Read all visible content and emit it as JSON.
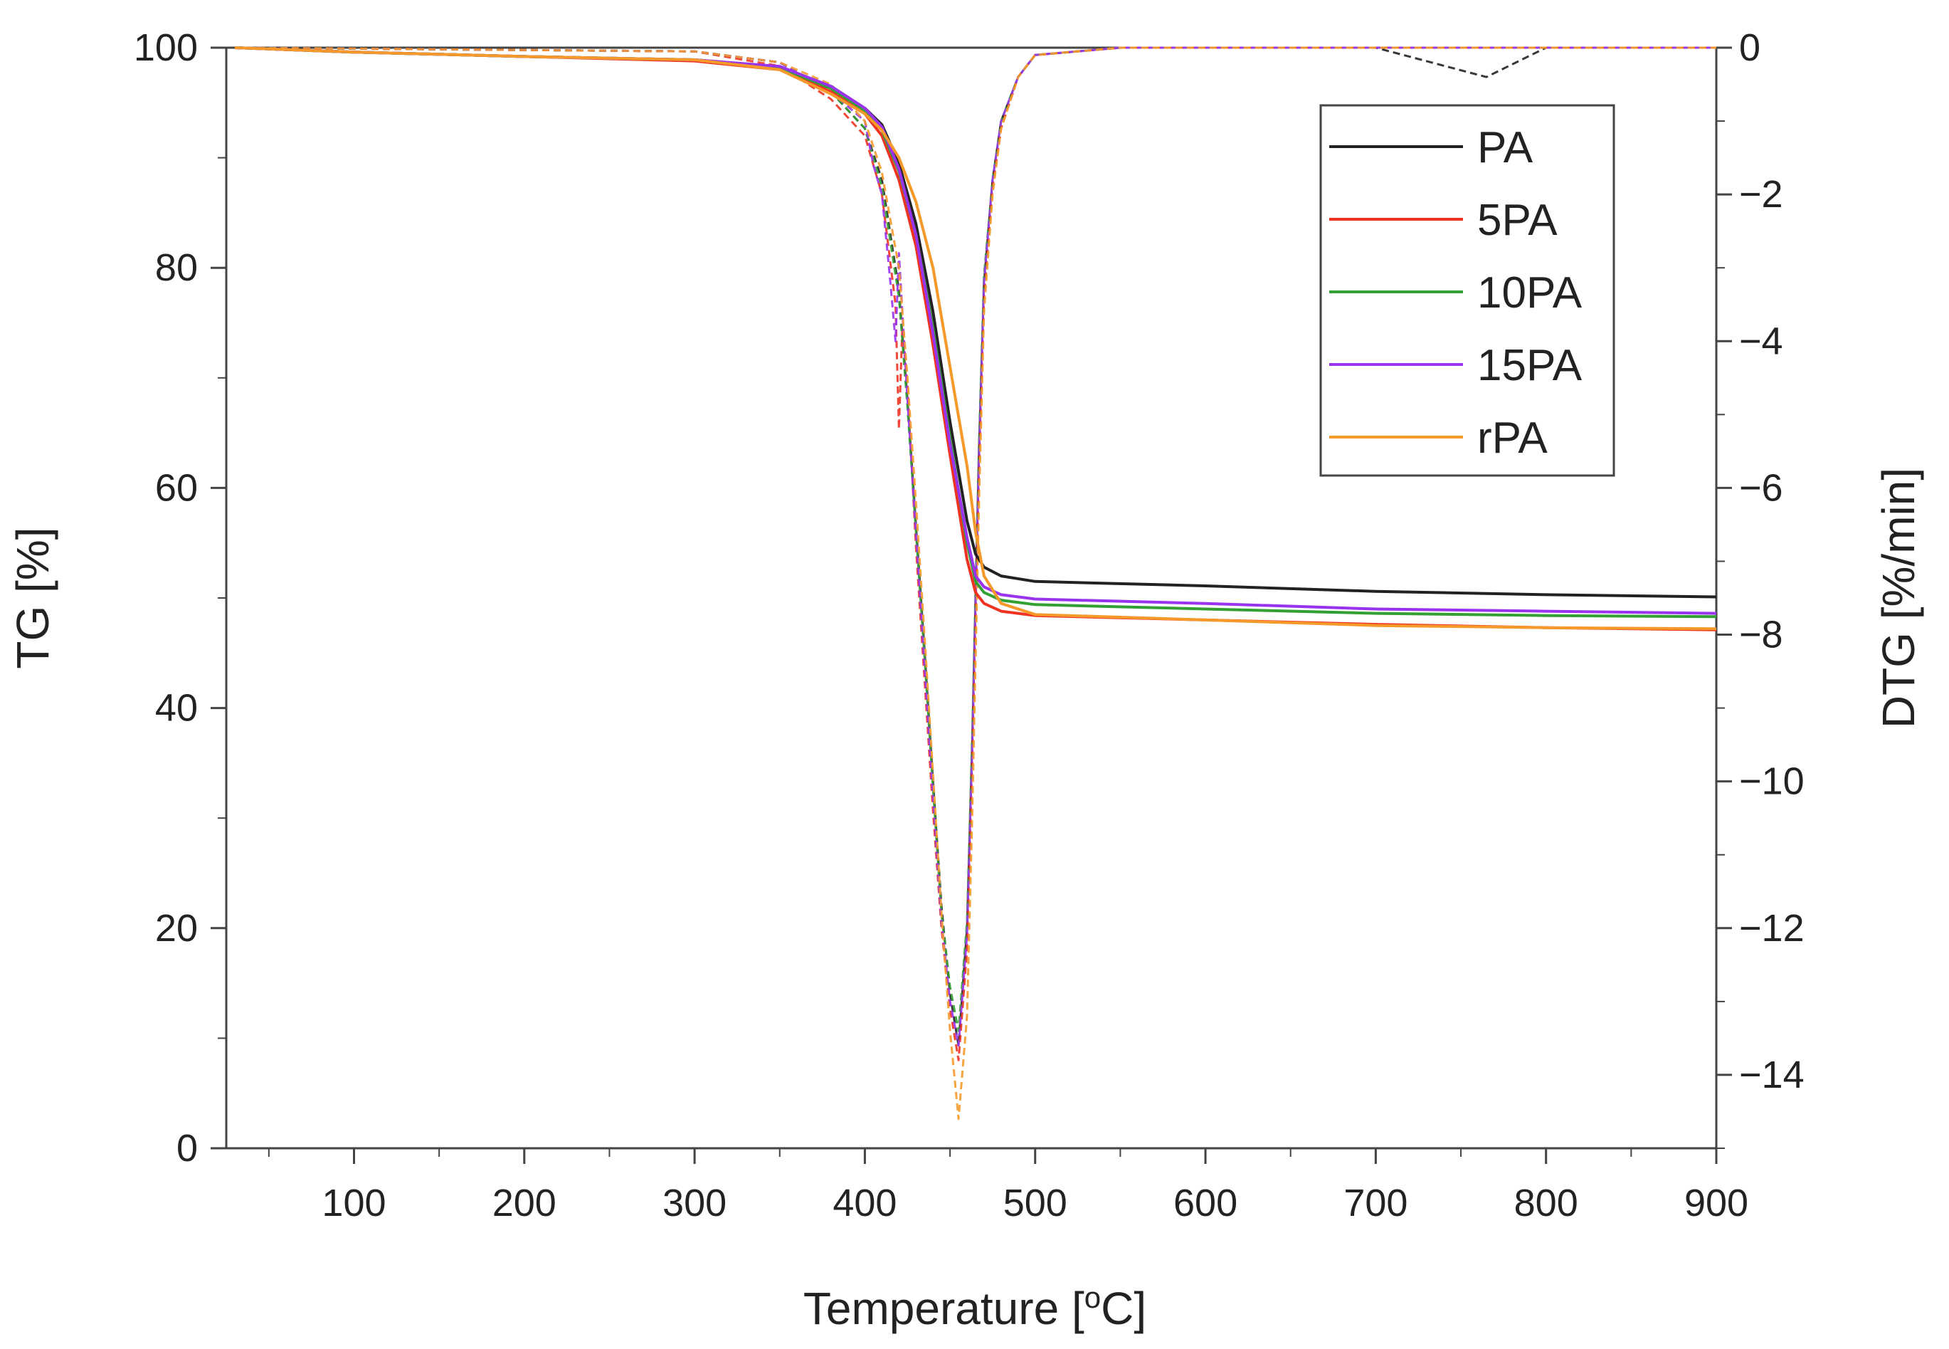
{
  "chart_data": {
    "type": "line",
    "title": "",
    "xlabel": "Temperature [",
    "xlabel_unit_sup": "o",
    "xlabel_unit_tail": "C]",
    "ylabel": "TG [%]",
    "y2label": "DTG [%/min]",
    "xlim": [
      25,
      900
    ],
    "ylim": [
      0,
      100
    ],
    "y2lim": [
      -15,
      0
    ],
    "x_ticks": [
      100,
      200,
      300,
      400,
      500,
      600,
      700,
      800,
      900
    ],
    "y_ticks": [
      0,
      20,
      40,
      60,
      80,
      100
    ],
    "y2_ticks": [
      0,
      -2,
      -4,
      -6,
      -8,
      -10,
      -12,
      -14
    ],
    "y2_tick_labels": [
      "0",
      "−2",
      "−4",
      "−6",
      "−8",
      "−10",
      "−12",
      "−14"
    ],
    "legend_position": "top-right",
    "colors": {
      "PA": "#222222",
      "5PA": "#ee3322",
      "10PA": "#33a033",
      "15PA": "#9933ee",
      "rPA": "#f59a2a",
      "axis": "#444444"
    },
    "tg_series": [
      {
        "name": "PA",
        "x": [
          30,
          100,
          200,
          300,
          350,
          380,
          400,
          410,
          420,
          430,
          440,
          450,
          460,
          465,
          470,
          480,
          500,
          600,
          700,
          800,
          900
        ],
        "y": [
          100,
          99.6,
          99.2,
          98.9,
          98.2,
          96.5,
          94.5,
          93.0,
          89.5,
          84.0,
          76.0,
          66.0,
          57.0,
          54.0,
          52.8,
          52.0,
          51.5,
          51.1,
          50.6,
          50.3,
          50.1
        ]
      },
      {
        "name": "5PA",
        "x": [
          30,
          100,
          200,
          300,
          350,
          380,
          400,
          410,
          420,
          430,
          440,
          450,
          460,
          465,
          470,
          480,
          500,
          600,
          700,
          800,
          900
        ],
        "y": [
          100,
          99.6,
          99.2,
          98.8,
          98.0,
          96.0,
          94.0,
          92.0,
          88.0,
          82.0,
          73.0,
          63.0,
          53.5,
          50.5,
          49.5,
          48.8,
          48.4,
          48.0,
          47.6,
          47.3,
          47.1
        ]
      },
      {
        "name": "10PA",
        "x": [
          30,
          100,
          200,
          300,
          350,
          380,
          400,
          410,
          420,
          430,
          440,
          450,
          460,
          465,
          470,
          480,
          500,
          600,
          700,
          800,
          900
        ],
        "y": [
          100,
          99.6,
          99.2,
          98.9,
          98.2,
          96.3,
          94.3,
          92.5,
          88.8,
          83.0,
          74.5,
          64.5,
          55.0,
          51.5,
          50.5,
          49.8,
          49.4,
          49.0,
          48.6,
          48.4,
          48.3
        ]
      },
      {
        "name": "15PA",
        "x": [
          30,
          100,
          200,
          300,
          350,
          380,
          400,
          410,
          420,
          430,
          440,
          450,
          460,
          465,
          470,
          480,
          500,
          600,
          700,
          800,
          900
        ],
        "y": [
          100,
          99.6,
          99.2,
          98.9,
          98.3,
          96.5,
          94.5,
          92.8,
          89.0,
          83.0,
          74.0,
          64.0,
          55.5,
          52.0,
          51.0,
          50.3,
          49.9,
          49.5,
          49.0,
          48.8,
          48.6
        ]
      },
      {
        "name": "rPA",
        "x": [
          30,
          100,
          200,
          300,
          350,
          380,
          400,
          410,
          420,
          430,
          440,
          450,
          460,
          465,
          470,
          480,
          500,
          600,
          700,
          800,
          900
        ],
        "y": [
          100,
          99.6,
          99.2,
          98.9,
          98.0,
          95.8,
          94.0,
          92.5,
          90.0,
          86.0,
          80.0,
          71.0,
          62.0,
          56.0,
          52.0,
          49.5,
          48.5,
          48.0,
          47.5,
          47.3,
          47.2
        ]
      }
    ],
    "dtg_series": [
      {
        "name": "PA",
        "x": [
          30,
          300,
          350,
          380,
          400,
          410,
          420,
          425,
          430,
          435,
          440,
          445,
          450,
          455,
          460,
          463,
          467,
          470,
          475,
          480,
          490,
          500,
          550,
          700,
          765,
          800,
          900
        ],
        "y": [
          0,
          -0.05,
          -0.2,
          -0.6,
          -1.1,
          -1.8,
          -3.3,
          -4.8,
          -6.5,
          -8.2,
          -10.0,
          -11.7,
          -12.9,
          -13.6,
          -12.0,
          -9.5,
          -5.5,
          -3.2,
          -1.8,
          -1.0,
          -0.4,
          -0.1,
          0,
          0,
          -0.4,
          0,
          0
        ]
      },
      {
        "name": "5PA",
        "x": [
          30,
          300,
          350,
          380,
          400,
          410,
          418,
          420,
          422,
          425,
          430,
          435,
          440,
          445,
          450,
          455,
          460,
          463,
          467,
          470,
          475,
          480,
          490,
          500,
          550,
          700,
          900
        ],
        "y": [
          0,
          -0.05,
          -0.25,
          -0.7,
          -1.2,
          -2.0,
          -3.5,
          -5.2,
          -3.8,
          -4.6,
          -6.8,
          -8.6,
          -10.4,
          -12.0,
          -13.1,
          -13.8,
          -12.3,
          -9.8,
          -5.8,
          -3.4,
          -1.9,
          -1.1,
          -0.4,
          -0.1,
          0,
          0,
          0
        ]
      },
      {
        "name": "10PA",
        "x": [
          30,
          300,
          350,
          380,
          400,
          410,
          420,
          425,
          430,
          435,
          440,
          445,
          450,
          455,
          460,
          463,
          467,
          470,
          475,
          480,
          490,
          500,
          550,
          700,
          900
        ],
        "y": [
          0,
          -0.05,
          -0.2,
          -0.6,
          -1.1,
          -1.9,
          -3.4,
          -4.9,
          -6.6,
          -8.3,
          -10.1,
          -11.8,
          -12.8,
          -13.4,
          -11.9,
          -9.4,
          -5.4,
          -3.1,
          -1.8,
          -1.0,
          -0.4,
          -0.1,
          0,
          0,
          0
        ]
      },
      {
        "name": "15PA",
        "x": [
          30,
          300,
          350,
          380,
          400,
          405,
          410,
          415,
          418,
          420,
          425,
          430,
          435,
          440,
          445,
          450,
          455,
          460,
          463,
          467,
          470,
          475,
          480,
          490,
          500,
          550,
          700,
          900
        ],
        "y": [
          0,
          -0.05,
          -0.2,
          -0.6,
          -1.0,
          -1.6,
          -2.0,
          -3.2,
          -4.0,
          -2.8,
          -4.8,
          -6.6,
          -8.4,
          -10.2,
          -11.9,
          -13.0,
          -13.6,
          -12.1,
          -9.6,
          -5.6,
          -3.2,
          -1.8,
          -1.0,
          -0.4,
          -0.1,
          0,
          0,
          0
        ]
      },
      {
        "name": "rPA",
        "x": [
          30,
          300,
          350,
          380,
          400,
          410,
          420,
          425,
          430,
          435,
          440,
          445,
          450,
          455,
          460,
          463,
          467,
          470,
          475,
          480,
          490,
          500,
          550,
          700,
          900
        ],
        "y": [
          0,
          -0.05,
          -0.2,
          -0.5,
          -1.0,
          -1.7,
          -3.0,
          -4.5,
          -6.2,
          -8.0,
          -9.9,
          -11.8,
          -13.4,
          -14.6,
          -13.2,
          -10.5,
          -6.2,
          -3.6,
          -2.0,
          -1.1,
          -0.4,
          -0.1,
          0,
          0,
          0
        ]
      }
    ]
  }
}
